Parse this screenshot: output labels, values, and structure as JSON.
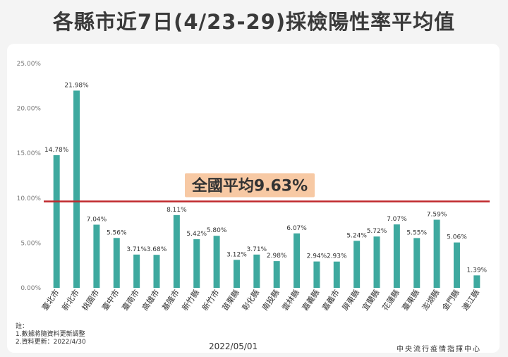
{
  "title": "各縣市近7日(4/23-29)採檢陽性率平均值",
  "chart_data": {
    "type": "bar",
    "categories": [
      "臺北市",
      "新北市",
      "桃園市",
      "臺中市",
      "臺南市",
      "高雄市",
      "基隆市",
      "新竹縣",
      "新竹市",
      "苗栗縣",
      "彰化縣",
      "南投縣",
      "雲林縣",
      "嘉義縣",
      "嘉義市",
      "屏東縣",
      "宜蘭縣",
      "花蓮縣",
      "臺東縣",
      "澎湖縣",
      "金門縣",
      "連江縣"
    ],
    "values": [
      14.78,
      21.98,
      7.04,
      5.56,
      3.71,
      3.68,
      8.11,
      5.42,
      5.8,
      3.12,
      3.71,
      2.98,
      6.07,
      2.94,
      2.93,
      5.24,
      5.72,
      7.07,
      5.55,
      7.59,
      5.06,
      1.39
    ],
    "value_labels": [
      "14.78%",
      "21.98%",
      "7.04%",
      "5.56%",
      "3.71%",
      "3.68%",
      "8.11%",
      "5.42%",
      "5.80%",
      "3.12%",
      "3.71%",
      "2.98%",
      "6.07%",
      "2.94%",
      "2.93%",
      "5.24%",
      "5.72%",
      "7.07%",
      "5.55%",
      "7.59%",
      "5.06%",
      "1.39%"
    ],
    "yticks": [
      0,
      5,
      10,
      15,
      20,
      25
    ],
    "ytick_labels": [
      "0.00%",
      "5.00%",
      "10.00%",
      "15.00%",
      "20.00%",
      "25.00%"
    ],
    "ylim": [
      0,
      25
    ],
    "grid": false,
    "reference_line": {
      "value": 9.63,
      "label": "全國平均9.63%",
      "color": "#c0282d"
    },
    "bar_color": "#3ea99f"
  },
  "notes": {
    "heading": "註：",
    "line1": "1.數據將隨資料更新調整",
    "line2": "2.資料更新：2022/4/30"
  },
  "footer": {
    "date": "2022/05/01",
    "org": "中央流行疫情指揮中心"
  }
}
